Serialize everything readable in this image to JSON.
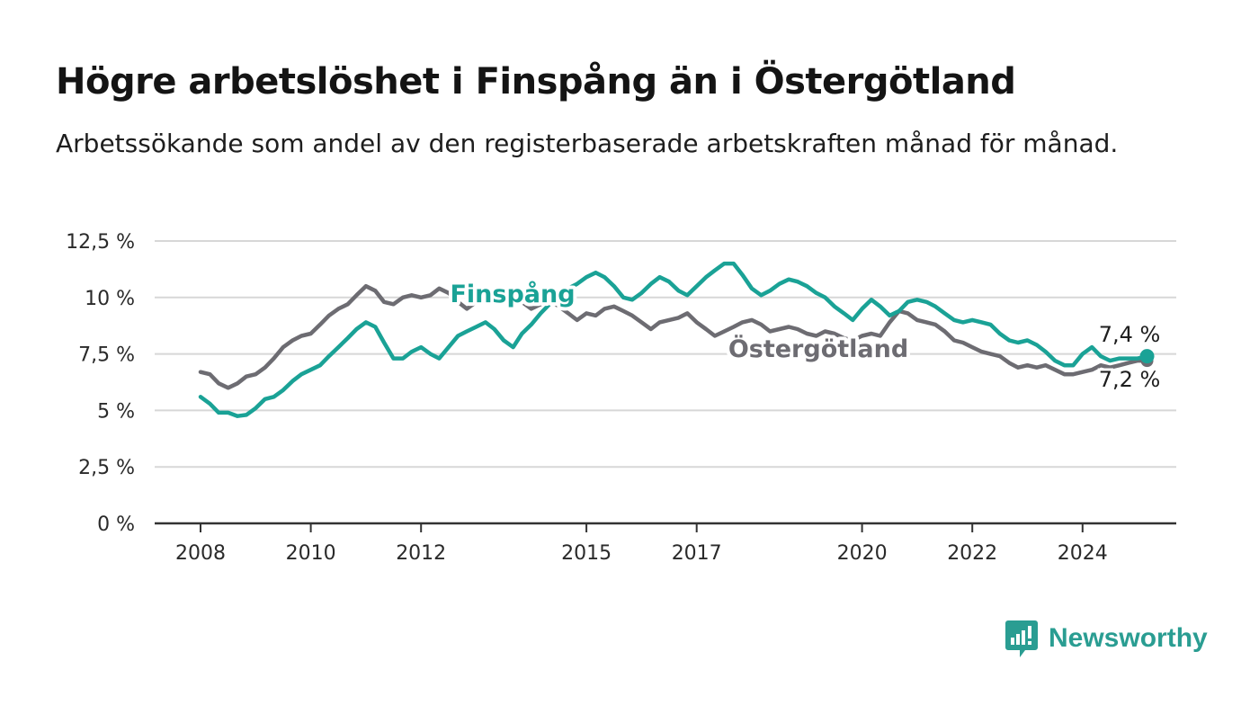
{
  "title": "Högre arbetslöshet i Finspång än i Östergötland",
  "subtitle": "Arbetssökande som andel av den registerbaserade arbetskraften månad för månad.",
  "brand": {
    "name": "Newsworthy",
    "icon": "newsworthy-logo-icon",
    "color": "#2a9d92"
  },
  "chart_data": {
    "type": "line",
    "title": "Högre arbetslöshet i Finspång än i Östergötland",
    "subtitle": "Arbetssökande som andel av den registerbaserade arbetskraften månad för månad.",
    "xlabel": "",
    "ylabel": "",
    "y_unit": "%",
    "ylim": [
      0,
      12.5
    ],
    "y_ticks": [
      "0 %",
      "2,5 %",
      "5 %",
      "7,5 %",
      "10 %",
      "12,5 %"
    ],
    "y_tick_values": [
      0,
      2.5,
      5,
      7.5,
      10,
      12.5
    ],
    "x_ticks": [
      "2008",
      "2010",
      "2012",
      "2015",
      "2017",
      "2020",
      "2022",
      "2024"
    ],
    "x_tick_values": [
      2008,
      2010,
      2012,
      2015,
      2017,
      2020,
      2022,
      2024
    ],
    "xlim": [
      2007.25,
      2025.75
    ],
    "grid": true,
    "legend": "inline labels",
    "series": [
      {
        "name": "Finspång",
        "color": "#1aa296",
        "end_label": "7,4 %",
        "points": [
          [
            2008.0,
            5.6
          ],
          [
            2008.17,
            5.3
          ],
          [
            2008.33,
            4.9
          ],
          [
            2008.5,
            4.9
          ],
          [
            2008.67,
            4.75
          ],
          [
            2008.83,
            4.8
          ],
          [
            2009.0,
            5.1
          ],
          [
            2009.17,
            5.5
          ],
          [
            2009.33,
            5.6
          ],
          [
            2009.5,
            5.9
          ],
          [
            2009.67,
            6.3
          ],
          [
            2009.83,
            6.6
          ],
          [
            2010.0,
            6.8
          ],
          [
            2010.17,
            7.0
          ],
          [
            2010.33,
            7.4
          ],
          [
            2010.5,
            7.8
          ],
          [
            2010.67,
            8.2
          ],
          [
            2010.83,
            8.6
          ],
          [
            2011.0,
            8.9
          ],
          [
            2011.17,
            8.7
          ],
          [
            2011.33,
            8.0
          ],
          [
            2011.5,
            7.3
          ],
          [
            2011.67,
            7.3
          ],
          [
            2011.83,
            7.6
          ],
          [
            2012.0,
            7.8
          ],
          [
            2012.17,
            7.5
          ],
          [
            2012.33,
            7.3
          ],
          [
            2012.5,
            7.8
          ],
          [
            2012.67,
            8.3
          ],
          [
            2012.83,
            8.5
          ],
          [
            2013.0,
            8.7
          ],
          [
            2013.17,
            8.9
          ],
          [
            2013.33,
            8.6
          ],
          [
            2013.5,
            8.1
          ],
          [
            2013.67,
            7.8
          ],
          [
            2013.83,
            8.4
          ],
          [
            2014.0,
            8.8
          ],
          [
            2014.17,
            9.3
          ],
          [
            2014.33,
            9.7
          ],
          [
            2014.5,
            10.1
          ],
          [
            2014.67,
            10.4
          ],
          [
            2014.83,
            10.6
          ],
          [
            2015.0,
            10.9
          ],
          [
            2015.17,
            11.1
          ],
          [
            2015.33,
            10.9
          ],
          [
            2015.5,
            10.5
          ],
          [
            2015.67,
            10.0
          ],
          [
            2015.83,
            9.9
          ],
          [
            2016.0,
            10.2
          ],
          [
            2016.17,
            10.6
          ],
          [
            2016.33,
            10.9
          ],
          [
            2016.5,
            10.7
          ],
          [
            2016.67,
            10.3
          ],
          [
            2016.83,
            10.1
          ],
          [
            2017.0,
            10.5
          ],
          [
            2017.17,
            10.9
          ],
          [
            2017.33,
            11.2
          ],
          [
            2017.5,
            11.5
          ],
          [
            2017.67,
            11.5
          ],
          [
            2017.83,
            11.0
          ],
          [
            2018.0,
            10.4
          ],
          [
            2018.17,
            10.1
          ],
          [
            2018.33,
            10.3
          ],
          [
            2018.5,
            10.6
          ],
          [
            2018.67,
            10.8
          ],
          [
            2018.83,
            10.7
          ],
          [
            2019.0,
            10.5
          ],
          [
            2019.17,
            10.2
          ],
          [
            2019.33,
            10.0
          ],
          [
            2019.5,
            9.6
          ],
          [
            2019.67,
            9.3
          ],
          [
            2019.83,
            9.0
          ],
          [
            2020.0,
            9.5
          ],
          [
            2020.17,
            9.9
          ],
          [
            2020.33,
            9.6
          ],
          [
            2020.5,
            9.2
          ],
          [
            2020.67,
            9.4
          ],
          [
            2020.83,
            9.8
          ],
          [
            2021.0,
            9.9
          ],
          [
            2021.17,
            9.8
          ],
          [
            2021.33,
            9.6
          ],
          [
            2021.5,
            9.3
          ],
          [
            2021.67,
            9.0
          ],
          [
            2021.83,
            8.9
          ],
          [
            2022.0,
            9.0
          ],
          [
            2022.17,
            8.9
          ],
          [
            2022.33,
            8.8
          ],
          [
            2022.5,
            8.4
          ],
          [
            2022.67,
            8.1
          ],
          [
            2022.83,
            8.0
          ],
          [
            2023.0,
            8.1
          ],
          [
            2023.17,
            7.9
          ],
          [
            2023.33,
            7.6
          ],
          [
            2023.5,
            7.2
          ],
          [
            2023.67,
            7.0
          ],
          [
            2023.83,
            7.0
          ],
          [
            2024.0,
            7.5
          ],
          [
            2024.17,
            7.8
          ],
          [
            2024.33,
            7.4
          ],
          [
            2024.5,
            7.2
          ],
          [
            2024.67,
            7.3
          ],
          [
            2024.83,
            7.3
          ],
          [
            2025.0,
            7.3
          ],
          [
            2025.17,
            7.4
          ]
        ]
      },
      {
        "name": "Östergötland",
        "color": "#6d6c72",
        "end_label": "7,2 %",
        "points": [
          [
            2008.0,
            6.7
          ],
          [
            2008.17,
            6.6
          ],
          [
            2008.33,
            6.2
          ],
          [
            2008.5,
            6.0
          ],
          [
            2008.67,
            6.2
          ],
          [
            2008.83,
            6.5
          ],
          [
            2009.0,
            6.6
          ],
          [
            2009.17,
            6.9
          ],
          [
            2009.33,
            7.3
          ],
          [
            2009.5,
            7.8
          ],
          [
            2009.67,
            8.1
          ],
          [
            2009.83,
            8.3
          ],
          [
            2010.0,
            8.4
          ],
          [
            2010.17,
            8.8
          ],
          [
            2010.33,
            9.2
          ],
          [
            2010.5,
            9.5
          ],
          [
            2010.67,
            9.7
          ],
          [
            2010.83,
            10.1
          ],
          [
            2011.0,
            10.5
          ],
          [
            2011.17,
            10.3
          ],
          [
            2011.33,
            9.8
          ],
          [
            2011.5,
            9.7
          ],
          [
            2011.67,
            10.0
          ],
          [
            2011.83,
            10.1
          ],
          [
            2012.0,
            10.0
          ],
          [
            2012.17,
            10.1
          ],
          [
            2012.33,
            10.4
          ],
          [
            2012.5,
            10.2
          ],
          [
            2012.67,
            9.8
          ],
          [
            2012.83,
            9.5
          ],
          [
            2013.0,
            9.8
          ],
          [
            2013.17,
            9.9
          ],
          [
            2013.33,
            10.1
          ],
          [
            2013.5,
            10.2
          ],
          [
            2013.67,
            10.0
          ],
          [
            2013.83,
            9.8
          ],
          [
            2014.0,
            9.5
          ],
          [
            2014.17,
            9.7
          ],
          [
            2014.33,
            9.9
          ],
          [
            2014.5,
            9.6
          ],
          [
            2014.67,
            9.3
          ],
          [
            2014.83,
            9.0
          ],
          [
            2015.0,
            9.3
          ],
          [
            2015.17,
            9.2
          ],
          [
            2015.33,
            9.5
          ],
          [
            2015.5,
            9.6
          ],
          [
            2015.67,
            9.4
          ],
          [
            2015.83,
            9.2
          ],
          [
            2016.0,
            8.9
          ],
          [
            2016.17,
            8.6
          ],
          [
            2016.33,
            8.9
          ],
          [
            2016.5,
            9.0
          ],
          [
            2016.67,
            9.1
          ],
          [
            2016.83,
            9.3
          ],
          [
            2017.0,
            8.9
          ],
          [
            2017.17,
            8.6
          ],
          [
            2017.33,
            8.3
          ],
          [
            2017.5,
            8.5
          ],
          [
            2017.67,
            8.7
          ],
          [
            2017.83,
            8.9
          ],
          [
            2018.0,
            9.0
          ],
          [
            2018.17,
            8.8
          ],
          [
            2018.33,
            8.5
          ],
          [
            2018.5,
            8.6
          ],
          [
            2018.67,
            8.7
          ],
          [
            2018.83,
            8.6
          ],
          [
            2019.0,
            8.4
          ],
          [
            2019.17,
            8.3
          ],
          [
            2019.33,
            8.5
          ],
          [
            2019.5,
            8.4
          ],
          [
            2019.67,
            8.2
          ],
          [
            2019.83,
            8.1
          ],
          [
            2020.0,
            8.3
          ],
          [
            2020.17,
            8.4
          ],
          [
            2020.33,
            8.3
          ],
          [
            2020.5,
            8.9
          ],
          [
            2020.67,
            9.4
          ],
          [
            2020.83,
            9.3
          ],
          [
            2021.0,
            9.0
          ],
          [
            2021.17,
            8.9
          ],
          [
            2021.33,
            8.8
          ],
          [
            2021.5,
            8.5
          ],
          [
            2021.67,
            8.1
          ],
          [
            2021.83,
            8.0
          ],
          [
            2022.0,
            7.8
          ],
          [
            2022.17,
            7.6
          ],
          [
            2022.33,
            7.5
          ],
          [
            2022.5,
            7.4
          ],
          [
            2022.67,
            7.1
          ],
          [
            2022.83,
            6.9
          ],
          [
            2023.0,
            7.0
          ],
          [
            2023.17,
            6.9
          ],
          [
            2023.33,
            7.0
          ],
          [
            2023.5,
            6.8
          ],
          [
            2023.67,
            6.6
          ],
          [
            2023.83,
            6.6
          ],
          [
            2024.0,
            6.7
          ],
          [
            2024.17,
            6.8
          ],
          [
            2024.33,
            7.0
          ],
          [
            2024.5,
            6.9
          ],
          [
            2024.67,
            7.0
          ],
          [
            2024.83,
            7.1
          ],
          [
            2025.0,
            7.2
          ],
          [
            2025.17,
            7.2
          ]
        ]
      }
    ]
  }
}
